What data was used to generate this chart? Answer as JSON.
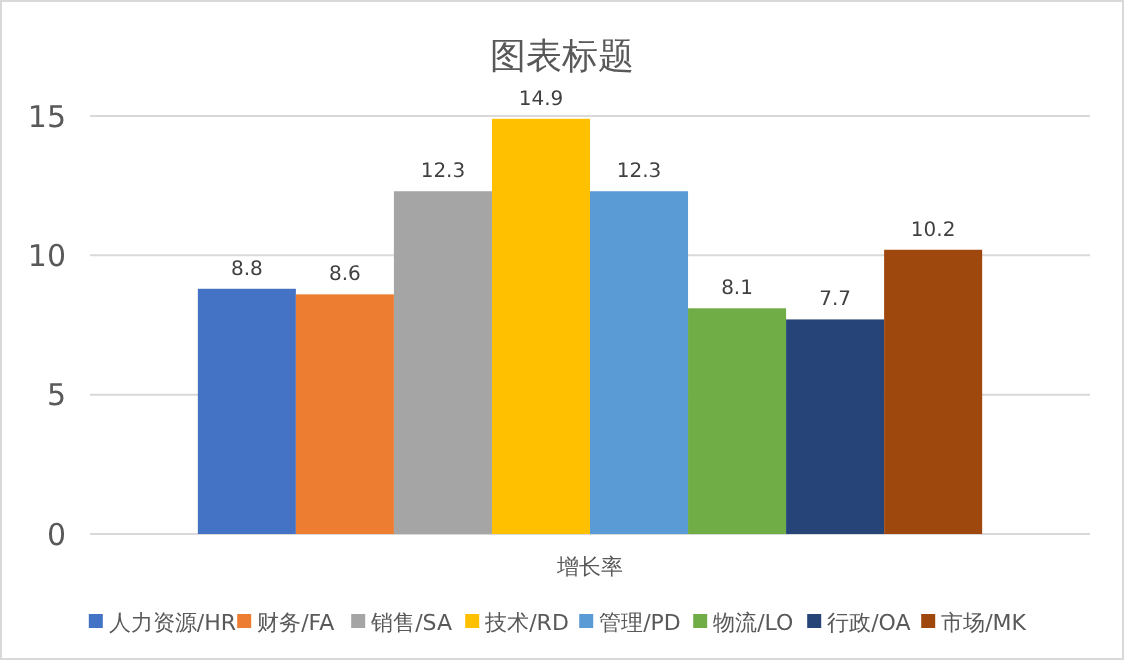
{
  "chart_data": {
    "type": "bar",
    "title": "图表标题",
    "categories": [
      "增长率"
    ],
    "series": [
      {
        "name": "人力资源/HR",
        "color": "#4472c4",
        "values": [
          8.8
        ]
      },
      {
        "name": "财务/FA",
        "color": "#ed7d31",
        "values": [
          8.6
        ]
      },
      {
        "name": "销售/SA",
        "color": "#a5a5a5",
        "values": [
          12.3
        ]
      },
      {
        "name": "技术/RD",
        "color": "#ffc000",
        "values": [
          14.9
        ]
      },
      {
        "name": "管理/PD",
        "color": "#5b9bd5",
        "values": [
          12.3
        ]
      },
      {
        "name": "物流/LO",
        "color": "#70ad47",
        "values": [
          8.1
        ]
      },
      {
        "name": "行政/OA",
        "color": "#264478",
        "values": [
          7.7
        ]
      },
      {
        "name": "市场/MK",
        "color": "#9e480e",
        "values": [
          10.2
        ]
      }
    ],
    "ylim": [
      0,
      15
    ],
    "yticks": [
      0,
      5,
      10,
      15
    ],
    "grid": "y",
    "legend": "bottom",
    "data_labels": true
  }
}
